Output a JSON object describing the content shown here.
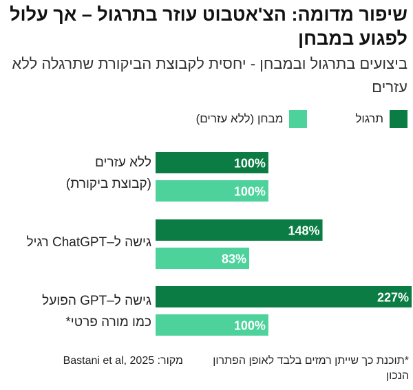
{
  "header": {
    "title": "שיפור מדומה: הצ'אטבוט עוזר בתרגול – אך עלול לפגוע במבחן",
    "subtitle": "ביצועים בתרגול ובמבחן - יחסית לקבוצת הביקורת שתרגלה ללא עזרים"
  },
  "legend": {
    "practice": "תרגול",
    "exam": "מבחן (ללא עזרים)"
  },
  "colors": {
    "practice": "#0b7d44",
    "exam": "#4dd29c"
  },
  "chart_data": {
    "type": "bar",
    "orientation": "horizontal",
    "title": "שיפור מדומה: הצ'אטבוט עוזר בתרגול – אך עלול לפגוע במבחן",
    "subtitle": "ביצועים בתרגול ובמבחן - יחסית לקבוצת הביקורת שתרגלה ללא עזרים",
    "categories": [
      [
        "ללא עזרים",
        "(קבוצת ביקורת)"
      ],
      [
        "גישה ל–ChatGPT רגיל"
      ],
      [
        "גישה ל–GPT הפועל",
        "כמו מורה פרטי*"
      ]
    ],
    "series": [
      {
        "name": "תרגול",
        "values": [
          100,
          148,
          227
        ],
        "labels": [
          "100%",
          "148%",
          "227%"
        ]
      },
      {
        "name": "מבחן (ללא עזרים)",
        "values": [
          100,
          83,
          100
        ],
        "labels": [
          "100%",
          "83%",
          "100%"
        ]
      }
    ],
    "unit": "%",
    "xlim": [
      0,
      227
    ],
    "grid": false,
    "legend_position": "top-right"
  },
  "footer": {
    "footnote": "*תוכנת כך שייתן רמזים בלבד לאופן הפתרון הנכון",
    "source": "מקור: Bastani et al, 2025"
  }
}
